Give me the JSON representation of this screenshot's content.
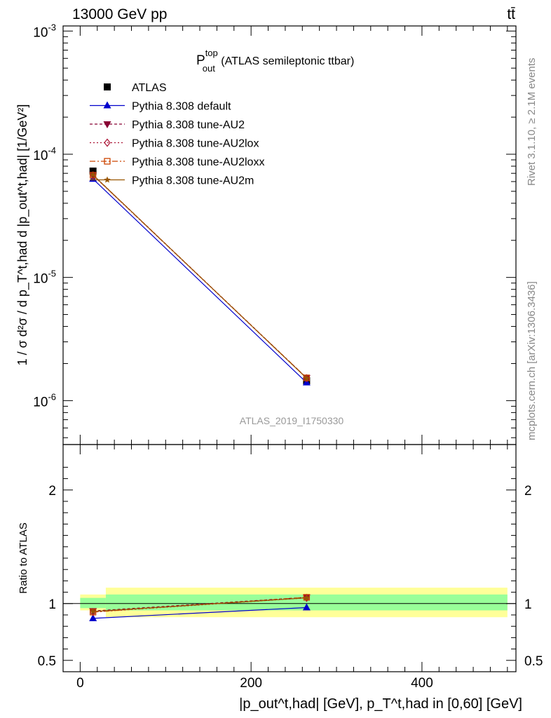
{
  "header": {
    "energy_label": "13000 GeV pp",
    "process_label": "tt̄"
  },
  "side": {
    "rivet": "Rivet 3.1.10, ≥ 2.1M events",
    "mcplots": "mcplots.cern.ch [arXiv:1306.3436]"
  },
  "chart_data": [
    {
      "type": "line",
      "title": "P_out^top (ATLAS semileptonic ttbar)",
      "title_main": "P",
      "title_sup": "top",
      "title_sub": "out",
      "title_rest": " (ATLAS semileptonic ttbar)",
      "ylabel": "1 / σ d²σ / d p_T^t,had d |p_out^t,had| [1/GeV²]",
      "analysis_label": "ATLAS_2019_I1750330",
      "yscale": "log",
      "xlim": [
        -20,
        510
      ],
      "ylim": [
        4.4e-07,
        0.0011
      ],
      "ytick_labels": [
        "10^-6",
        "10^-5",
        "10^-4",
        "10^-3"
      ],
      "x": [
        15,
        265
      ],
      "legend_position": "top-left",
      "series": [
        {
          "name": "ATLAS",
          "color": "#000000",
          "marker": "square",
          "dash": "",
          "values": [
            7.3e-05,
            1.45e-06
          ]
        },
        {
          "name": "Pythia 8.308 default",
          "color": "#0000cc",
          "marker": "triangle-up",
          "dash": "",
          "values": [
            6.3e-05,
            1.4e-06
          ]
        },
        {
          "name": "Pythia 8.308 tune-AU2",
          "color": "#880033",
          "marker": "triangle-down",
          "dash": "4,3",
          "values": [
            6.8e-05,
            1.53e-06
          ]
        },
        {
          "name": "Pythia 8.308 tune-AU2lox",
          "color": "#aa1133",
          "marker": "diamond",
          "dash": "2,3",
          "values": [
            6.75e-05,
            1.52e-06
          ]
        },
        {
          "name": "Pythia 8.308 tune-AU2loxx",
          "color": "#cc4400",
          "marker": "square-open",
          "dash": "8,3,2,3",
          "values": [
            6.75e-05,
            1.53e-06
          ]
        },
        {
          "name": "Pythia 8.308 tune-AU2m",
          "color": "#995500",
          "marker": "star",
          "dash": "",
          "values": [
            6.8e-05,
            1.52e-06
          ]
        }
      ]
    },
    {
      "type": "line",
      "ylabel": "Ratio to ATLAS",
      "xlabel": "|p_out^t,had| [GeV], p_T^t,had in [0,60] [GeV]",
      "xlim": [
        -20,
        510
      ],
      "ylim": [
        0.4,
        2.4
      ],
      "yticks": [
        0.5,
        1,
        2
      ],
      "ytick_labels": [
        "0.5",
        "1",
        "2"
      ],
      "xticks": [
        0,
        200,
        400
      ],
      "xtick_labels": [
        "0",
        "200",
        "400"
      ],
      "x": [
        15,
        265
      ],
      "bands": [
        {
          "x0": 0,
          "x1": 30,
          "inner": [
            0.96,
            1.05
          ],
          "outer": [
            0.94,
            1.08
          ]
        },
        {
          "x0": 30,
          "x1": 500,
          "inner": [
            0.94,
            1.08
          ],
          "outer": [
            0.88,
            1.14
          ]
        }
      ],
      "band_colors": {
        "inner": "#99ff99",
        "outer": "#ffff99"
      },
      "series": [
        {
          "name": "Pythia 8.308 default",
          "values": [
            0.87,
            0.965
          ]
        },
        {
          "name": "Pythia 8.308 tune-AU2",
          "values": [
            0.935,
            1.055
          ]
        },
        {
          "name": "Pythia 8.308 tune-AU2lox",
          "values": [
            0.925,
            1.05
          ]
        },
        {
          "name": "Pythia 8.308 tune-AU2loxx",
          "values": [
            0.925,
            1.055
          ]
        },
        {
          "name": "Pythia 8.308 tune-AU2m",
          "values": [
            0.93,
            1.05
          ]
        }
      ]
    }
  ]
}
